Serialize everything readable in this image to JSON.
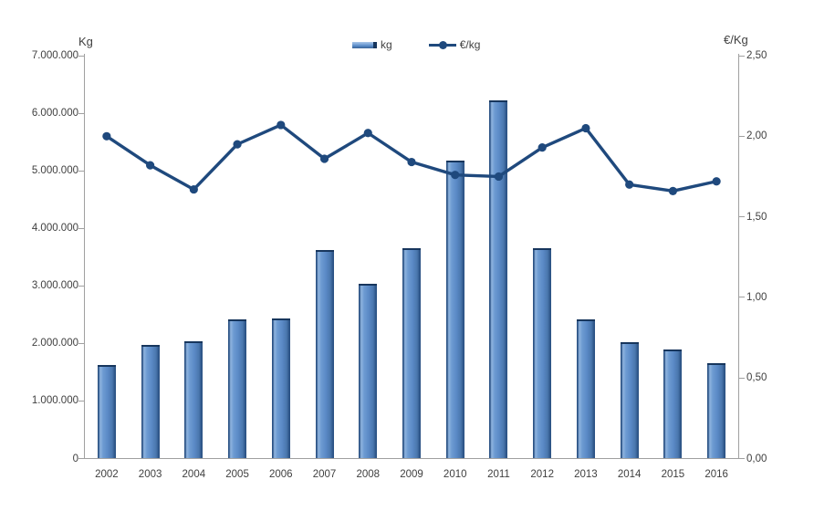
{
  "colors": {
    "bar_fill": "#4f81bd",
    "bar_highlight": "#8fb4df",
    "bar_edge": "#2c5385",
    "line": "#1f497d",
    "axis_line": "#a0a0a0",
    "text": "#404040"
  },
  "legend": {
    "kg_label": "kg",
    "eur_kg_label": "€/kg"
  },
  "chart_data": {
    "type": "bar",
    "subtype": "combo bar + line, dual axis",
    "categories": [
      "2002",
      "2003",
      "2004",
      "2005",
      "2006",
      "2007",
      "2008",
      "2009",
      "2010",
      "2011",
      "2012",
      "2013",
      "2014",
      "2015",
      "2016"
    ],
    "series": [
      {
        "name": "kg",
        "type": "bar",
        "axis": "left",
        "color": "#4f81bd",
        "values": [
          1630000,
          1970000,
          2030000,
          2410000,
          2440000,
          3620000,
          3030000,
          3660000,
          5170000,
          6220000,
          3650000,
          2410000,
          2020000,
          1900000,
          1650000
        ]
      },
      {
        "name": "€/kg",
        "type": "line",
        "axis": "right",
        "color": "#1f497d",
        "values": [
          2.0,
          1.82,
          1.67,
          1.95,
          2.07,
          1.86,
          2.02,
          1.84,
          1.76,
          1.75,
          1.93,
          2.05,
          1.7,
          1.66,
          1.72
        ]
      }
    ],
    "left_axis": {
      "title": "Kg",
      "min": 0,
      "max": 7000000,
      "tick_labels": [
        "7.000.000",
        "6.000.000",
        "5.000.000",
        "4.000.000",
        "3.000.000",
        "2.000.000",
        "1.000.000",
        "0"
      ]
    },
    "right_axis": {
      "title": "€/Kg",
      "min": 0,
      "max": 2.5,
      "tick_labels": [
        "2,50",
        "2,00",
        "1,50",
        "1,00",
        "0,50",
        "0,00"
      ]
    },
    "grid": false,
    "legend_position": "top-center"
  }
}
